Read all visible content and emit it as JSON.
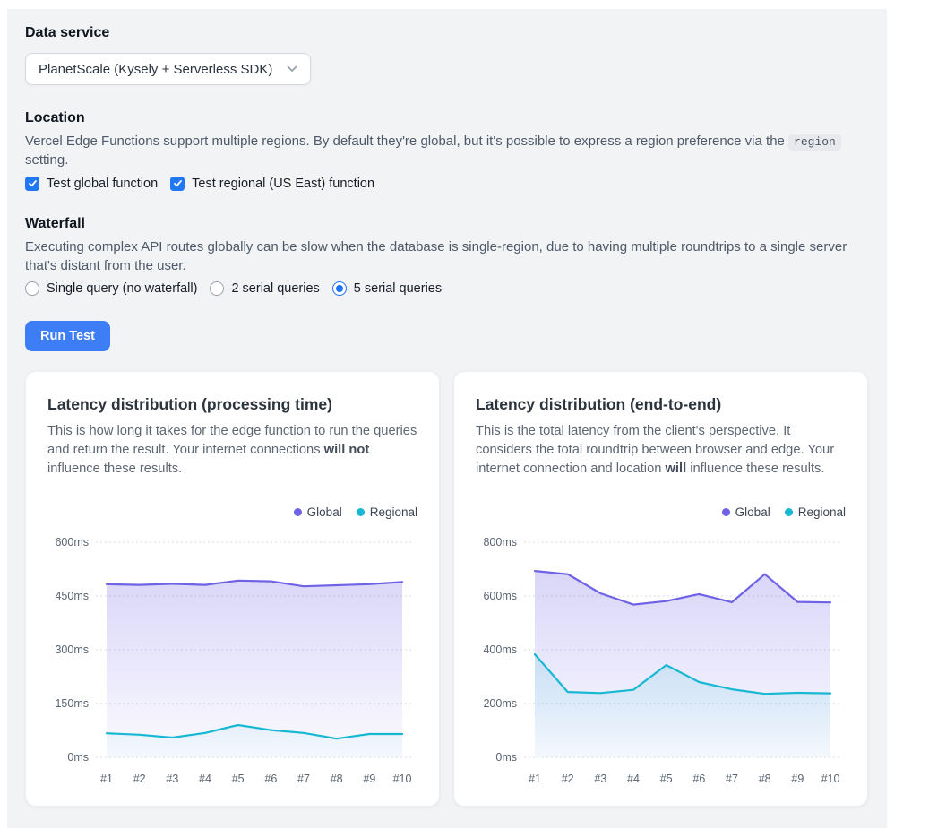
{
  "colors": {
    "global_line": "#6e62e5",
    "regional_line": "#16b8d2",
    "accent_blue": "#2178f3",
    "button_bg": "#3d7df6",
    "panel_bg": "#f1f3f5"
  },
  "data_service": {
    "heading": "Data service",
    "select_value": "PlanetScale (Kysely + Serverless SDK)"
  },
  "location": {
    "heading": "Location",
    "desc_before": "Vercel Edge Functions support multiple regions. By default they're global, but it's possible to express a region preference via the ",
    "code": "region",
    "desc_after": " setting.",
    "checkboxes": [
      {
        "label": "Test global function",
        "checked": true
      },
      {
        "label": "Test regional (US East) function",
        "checked": true
      }
    ]
  },
  "waterfall": {
    "heading": "Waterfall",
    "desc": "Executing complex API routes globally can be slow when the database is single-region, due to having multiple roundtrips to a single server that's distant from the user.",
    "options": [
      {
        "label": "Single query (no waterfall)",
        "selected": false
      },
      {
        "label": "2 serial queries",
        "selected": false
      },
      {
        "label": "5 serial queries",
        "selected": true
      }
    ]
  },
  "run_button": {
    "label": "Run Test"
  },
  "cards": [
    {
      "title": "Latency distribution (processing time)",
      "desc_before": "This is how long it takes for the edge function to run the queries and return the result. Your internet connections ",
      "desc_bold": "will not",
      "desc_after": " influence these results.",
      "legend": {
        "global": "Global",
        "regional": "Regional"
      }
    },
    {
      "title": "Latency distribution (end-to-end)",
      "desc_before": "This is the total latency from the client's perspective. It considers the total roundtrip between browser and edge. Your internet connection and location ",
      "desc_bold": "will",
      "desc_after": " influence these results.",
      "legend": {
        "global": "Global",
        "regional": "Regional"
      }
    }
  ],
  "chart_data": [
    {
      "type": "area",
      "title": "Latency distribution (processing time)",
      "x_labels": [
        "#1",
        "#2",
        "#3",
        "#4",
        "#5",
        "#6",
        "#7",
        "#8",
        "#9",
        "#10"
      ],
      "ylim": [
        0,
        600
      ],
      "yticks": [
        0,
        150,
        300,
        450,
        600
      ],
      "ytick_labels": [
        "0ms",
        "150ms",
        "300ms",
        "450ms",
        "600ms"
      ],
      "grid": true,
      "legend_position": "top-right",
      "series": [
        {
          "name": "Global",
          "color": "#6e62e5",
          "values": [
            483,
            481,
            484,
            481,
            493,
            491,
            477,
            480,
            483,
            489
          ]
        },
        {
          "name": "Regional",
          "color": "#16b8d2",
          "values": [
            67,
            63,
            55,
            68,
            90,
            76,
            68,
            52,
            65,
            65
          ]
        }
      ]
    },
    {
      "type": "area",
      "title": "Latency distribution (end-to-end)",
      "x_labels": [
        "#1",
        "#2",
        "#3",
        "#4",
        "#5",
        "#6",
        "#7",
        "#8",
        "#9",
        "#10"
      ],
      "ylim": [
        0,
        800
      ],
      "yticks": [
        0,
        200,
        400,
        600,
        800
      ],
      "ytick_labels": [
        "0ms",
        "200ms",
        "400ms",
        "600ms",
        "800ms"
      ],
      "grid": true,
      "legend_position": "top-right",
      "series": [
        {
          "name": "Global",
          "color": "#6e62e5",
          "values": [
            693,
            681,
            610,
            568,
            581,
            607,
            577,
            681,
            578,
            576
          ]
        },
        {
          "name": "Regional",
          "color": "#16b8d2",
          "values": [
            383,
            243,
            239,
            251,
            343,
            280,
            253,
            236,
            240,
            238
          ]
        }
      ]
    }
  ]
}
